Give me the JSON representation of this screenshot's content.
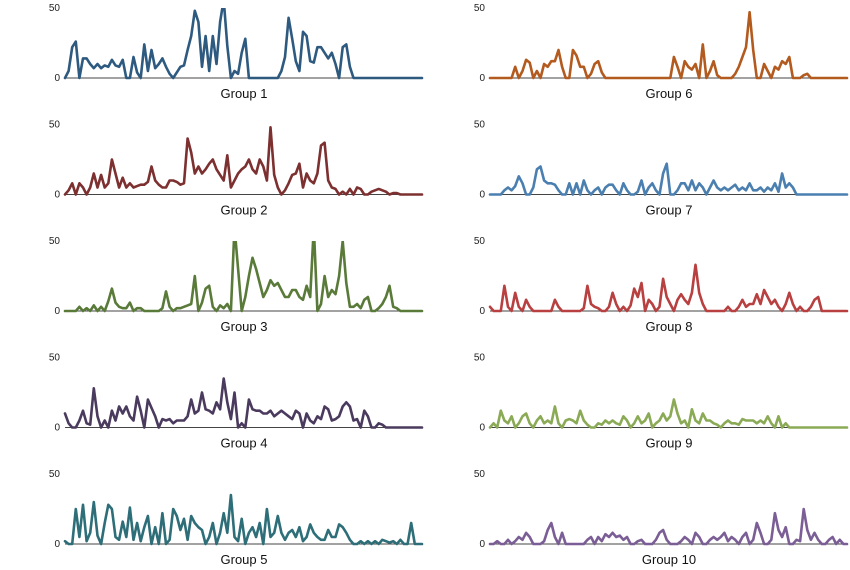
{
  "chart_data": [
    {
      "type": "line",
      "title": "Group 1",
      "color": "#2e5a80",
      "ylim": [
        0,
        50
      ],
      "yticks": [
        0,
        50
      ],
      "values": [
        0,
        5,
        22,
        26,
        0,
        14,
        14,
        10,
        7,
        10,
        7,
        9,
        8,
        13,
        9,
        8,
        13,
        0,
        0,
        15,
        4,
        0,
        24,
        5,
        20,
        7,
        10,
        14,
        8,
        3,
        0,
        4,
        8,
        9,
        20,
        30,
        48,
        40,
        8,
        30,
        5,
        30,
        10,
        40,
        56,
        23,
        0,
        5,
        3,
        18,
        28,
        0,
        0,
        0,
        0,
        0,
        0,
        0,
        0,
        0,
        5,
        15,
        43,
        28,
        12,
        5,
        33,
        30,
        12,
        11,
        22,
        22,
        18,
        14,
        18,
        10,
        0,
        22,
        24,
        8,
        0,
        0,
        0,
        0,
        0,
        0,
        0,
        0,
        0,
        0,
        0,
        0,
        0,
        0,
        0,
        0,
        0,
        0,
        0,
        0
      ]
    },
    {
      "type": "line",
      "title": "Group 2",
      "color": "#7d3030",
      "ylim": [
        0,
        50
      ],
      "yticks": [
        0,
        50
      ],
      "values": [
        0,
        3,
        8,
        0,
        8,
        5,
        0,
        5,
        15,
        5,
        14,
        5,
        8,
        25,
        15,
        5,
        12,
        5,
        8,
        5,
        6,
        7,
        7,
        9,
        20,
        10,
        7,
        5,
        5,
        10,
        10,
        9,
        7,
        8,
        40,
        30,
        15,
        20,
        15,
        18,
        22,
        25,
        18,
        14,
        10,
        28,
        5,
        10,
        15,
        18,
        20,
        25,
        18,
        15,
        25,
        20,
        10,
        48,
        14,
        5,
        0,
        3,
        8,
        14,
        15,
        22,
        5,
        15,
        10,
        8,
        15,
        35,
        37,
        10,
        5,
        4,
        0,
        2,
        0,
        4,
        0,
        5,
        4,
        0,
        0,
        2,
        3,
        4,
        3,
        2,
        0,
        1,
        1,
        0,
        0,
        0,
        0,
        0,
        0,
        0
      ]
    },
    {
      "type": "line",
      "title": "Group 3",
      "color": "#5a7a3a",
      "ylim": [
        0,
        50
      ],
      "yticks": [
        0,
        50
      ],
      "values": [
        0,
        0,
        0,
        0,
        3,
        0,
        2,
        0,
        4,
        0,
        3,
        0,
        7,
        16,
        6,
        3,
        2,
        2,
        6,
        0,
        2,
        2,
        0,
        0,
        0,
        0,
        0,
        2,
        14,
        3,
        0,
        2,
        2,
        3,
        4,
        5,
        25,
        0,
        6,
        16,
        18,
        3,
        0,
        4,
        2,
        5,
        0,
        60,
        30,
        0,
        10,
        25,
        38,
        30,
        20,
        10,
        15,
        22,
        18,
        20,
        15,
        10,
        10,
        15,
        15,
        10,
        8,
        18,
        10,
        60,
        0,
        5,
        25,
        10,
        15,
        12,
        25,
        50,
        20,
        3,
        3,
        5,
        2,
        8,
        10,
        0,
        0,
        2,
        5,
        10,
        18,
        3,
        2,
        0,
        0,
        0,
        0,
        0,
        0,
        0
      ]
    },
    {
      "type": "line",
      "title": "Group 4",
      "color": "#4a3a5e",
      "ylim": [
        0,
        50
      ],
      "yticks": [
        0,
        50
      ],
      "values": [
        10,
        3,
        0,
        0,
        5,
        12,
        3,
        2,
        28,
        8,
        0,
        5,
        0,
        12,
        5,
        15,
        10,
        15,
        8,
        5,
        22,
        12,
        0,
        20,
        14,
        8,
        0,
        6,
        5,
        6,
        3,
        5,
        5,
        5,
        8,
        20,
        10,
        12,
        25,
        13,
        12,
        10,
        18,
        13,
        35,
        18,
        6,
        25,
        0,
        3,
        0,
        20,
        13,
        12,
        12,
        10,
        10,
        12,
        8,
        10,
        12,
        10,
        8,
        6,
        12,
        10,
        0,
        10,
        5,
        3,
        8,
        6,
        15,
        13,
        5,
        6,
        8,
        15,
        18,
        15,
        5,
        6,
        0,
        12,
        8,
        0,
        0,
        3,
        2,
        0,
        0,
        0,
        0,
        0,
        0,
        0,
        0,
        0,
        0,
        0
      ]
    },
    {
      "type": "line",
      "title": "Group 5",
      "color": "#2e6e78",
      "ylim": [
        0,
        50
      ],
      "yticks": [
        0,
        50
      ],
      "values": [
        2,
        0,
        0,
        25,
        5,
        28,
        2,
        8,
        30,
        6,
        0,
        15,
        28,
        25,
        5,
        3,
        16,
        5,
        26,
        3,
        15,
        2,
        12,
        20,
        0,
        12,
        0,
        22,
        0,
        3,
        25,
        20,
        10,
        18,
        3,
        20,
        15,
        12,
        10,
        0,
        5,
        15,
        0,
        8,
        22,
        8,
        35,
        5,
        2,
        18,
        0,
        8,
        12,
        5,
        15,
        0,
        25,
        5,
        8,
        20,
        8,
        3,
        8,
        10,
        5,
        12,
        2,
        5,
        14,
        8,
        5,
        3,
        3,
        10,
        5,
        5,
        14,
        12,
        8,
        3,
        0,
        0,
        2,
        0,
        2,
        0,
        2,
        0,
        3,
        2,
        1,
        2,
        0,
        3,
        0,
        0,
        15,
        0,
        0,
        0
      ]
    },
    {
      "type": "line",
      "title": "Group 6",
      "color": "#b35a1f",
      "ylim": [
        0,
        50
      ],
      "yticks": [
        0,
        50
      ],
      "values": [
        0,
        0,
        0,
        0,
        0,
        0,
        0,
        8,
        0,
        5,
        13,
        11,
        0,
        5,
        0,
        10,
        8,
        12,
        12,
        20,
        8,
        0,
        0,
        20,
        16,
        8,
        8,
        0,
        3,
        10,
        12,
        4,
        0,
        0,
        0,
        0,
        0,
        0,
        0,
        0,
        0,
        0,
        0,
        0,
        0,
        0,
        0,
        0,
        0,
        0,
        0,
        15,
        8,
        0,
        12,
        8,
        6,
        10,
        0,
        24,
        0,
        5,
        12,
        2,
        0,
        0,
        0,
        0,
        3,
        8,
        15,
        22,
        47,
        20,
        0,
        0,
        10,
        5,
        0,
        8,
        6,
        12,
        10,
        15,
        0,
        0,
        0,
        2,
        3,
        0,
        0,
        0,
        0,
        0,
        0,
        0,
        0,
        0,
        0,
        0
      ]
    },
    {
      "type": "line",
      "title": "Group 7",
      "color": "#4a7fb0",
      "ylim": [
        0,
        50
      ],
      "yticks": [
        0,
        50
      ],
      "values": [
        0,
        0,
        0,
        0,
        3,
        5,
        3,
        6,
        13,
        8,
        0,
        0,
        5,
        18,
        20,
        10,
        8,
        8,
        7,
        3,
        0,
        0,
        8,
        0,
        8,
        0,
        10,
        3,
        0,
        3,
        5,
        0,
        5,
        7,
        7,
        3,
        0,
        8,
        3,
        0,
        0,
        2,
        10,
        0,
        5,
        8,
        3,
        0,
        15,
        22,
        0,
        0,
        3,
        8,
        8,
        3,
        10,
        3,
        8,
        5,
        0,
        5,
        10,
        5,
        3,
        5,
        3,
        5,
        7,
        3,
        5,
        3,
        8,
        3,
        3,
        5,
        2,
        5,
        3,
        8,
        2,
        15,
        5,
        8,
        5,
        0,
        0,
        0,
        0,
        0,
        0,
        0,
        0,
        0,
        0,
        0,
        0,
        0,
        0,
        0
      ]
    },
    {
      "type": "line",
      "title": "Group 8",
      "color": "#b84040",
      "ylim": [
        0,
        50
      ],
      "yticks": [
        0,
        50
      ],
      "values": [
        3,
        0,
        0,
        0,
        18,
        3,
        0,
        13,
        3,
        0,
        8,
        3,
        0,
        0,
        0,
        0,
        0,
        0,
        8,
        3,
        0,
        0,
        0,
        0,
        0,
        0,
        2,
        18,
        5,
        3,
        2,
        0,
        0,
        3,
        13,
        5,
        0,
        3,
        0,
        4,
        16,
        10,
        20,
        0,
        8,
        5,
        0,
        3,
        23,
        10,
        5,
        0,
        8,
        12,
        8,
        5,
        13,
        33,
        13,
        5,
        0,
        0,
        0,
        0,
        0,
        0,
        3,
        0,
        0,
        3,
        8,
        3,
        5,
        5,
        12,
        5,
        15,
        10,
        5,
        8,
        3,
        0,
        5,
        13,
        5,
        0,
        3,
        0,
        0,
        3,
        8,
        10,
        0,
        0,
        0,
        0,
        0,
        0,
        0,
        0
      ]
    },
    {
      "type": "line",
      "title": "Group 9",
      "color": "#8aaa55",
      "ylim": [
        0,
        50
      ],
      "yticks": [
        0,
        50
      ],
      "values": [
        0,
        3,
        0,
        12,
        5,
        3,
        8,
        0,
        3,
        8,
        10,
        3,
        0,
        5,
        8,
        3,
        5,
        3,
        15,
        3,
        0,
        5,
        6,
        5,
        3,
        12,
        5,
        2,
        0,
        0,
        3,
        2,
        5,
        3,
        5,
        3,
        2,
        8,
        5,
        0,
        3,
        8,
        3,
        5,
        10,
        0,
        3,
        5,
        10,
        5,
        8,
        20,
        10,
        3,
        5,
        0,
        13,
        5,
        3,
        10,
        5,
        5,
        3,
        2,
        0,
        3,
        5,
        3,
        3,
        2,
        6,
        5,
        5,
        5,
        3,
        5,
        3,
        8,
        3,
        0,
        8,
        0,
        3,
        0,
        0,
        0,
        0,
        0,
        0,
        0,
        0,
        0,
        0,
        0,
        0,
        0,
        0,
        0,
        0,
        0
      ]
    },
    {
      "type": "line",
      "title": "Group 10",
      "color": "#7a5e95",
      "ylim": [
        0,
        50
      ],
      "yticks": [
        0,
        50
      ],
      "values": [
        0,
        0,
        2,
        0,
        0,
        3,
        0,
        2,
        5,
        3,
        8,
        5,
        0,
        0,
        0,
        2,
        10,
        15,
        5,
        0,
        8,
        0,
        0,
        0,
        0,
        0,
        0,
        3,
        5,
        0,
        5,
        2,
        7,
        5,
        8,
        5,
        6,
        3,
        5,
        0,
        0,
        2,
        3,
        0,
        0,
        0,
        3,
        8,
        10,
        3,
        0,
        0,
        0,
        2,
        5,
        3,
        0,
        8,
        5,
        0,
        0,
        3,
        5,
        3,
        5,
        8,
        2,
        5,
        3,
        0,
        5,
        8,
        0,
        3,
        15,
        8,
        0,
        0,
        3,
        22,
        10,
        5,
        12,
        0,
        0,
        3,
        2,
        25,
        10,
        3,
        8,
        3,
        0,
        0,
        3,
        5,
        0,
        3,
        0,
        0
      ]
    }
  ]
}
